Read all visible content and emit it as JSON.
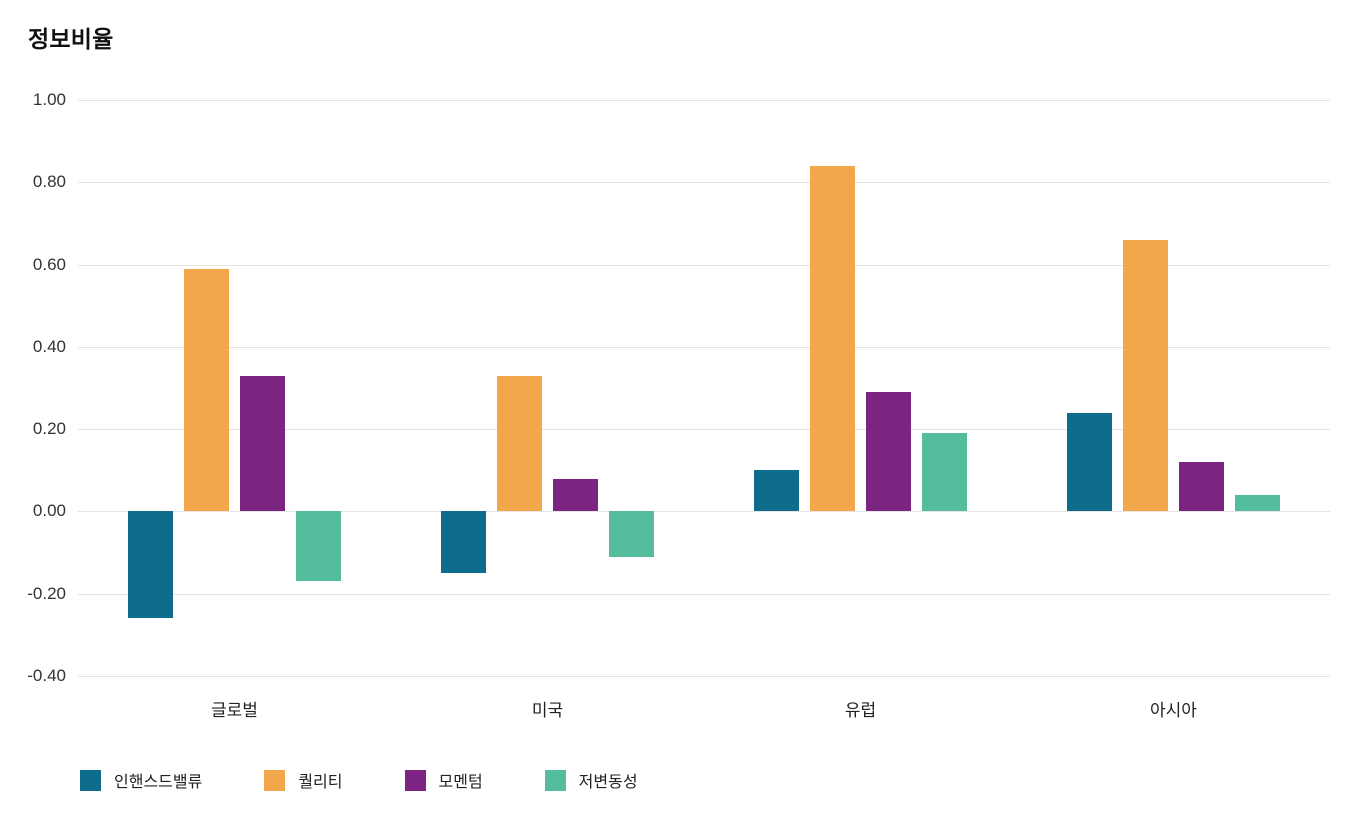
{
  "chart_data": {
    "type": "bar",
    "title": "정보비율",
    "categories": [
      "글로벌",
      "미국",
      "유럽",
      "아시아"
    ],
    "series": [
      {
        "name": "인핸스드밸류",
        "color": "#0E6D8C",
        "values": [
          -0.26,
          -0.15,
          0.1,
          0.24
        ]
      },
      {
        "name": "퀄리티",
        "color": "#F2A74B",
        "values": [
          0.59,
          0.33,
          0.84,
          0.66
        ]
      },
      {
        "name": "모멘텀",
        "color": "#7B2481",
        "values": [
          0.33,
          0.08,
          0.29,
          0.12
        ]
      },
      {
        "name": "저변동성",
        "color": "#54BD9E",
        "values": [
          -0.17,
          -0.11,
          0.19,
          0.04
        ]
      }
    ],
    "ylim": [
      -0.4,
      1.0
    ],
    "yticks": [
      1.0,
      0.8,
      0.6,
      0.4,
      0.2,
      0.0,
      -0.2,
      -0.4
    ],
    "grid": true,
    "legend_position": "bottom",
    "background_color": "#ffffff",
    "gridline_color": "#e4e4e4"
  }
}
